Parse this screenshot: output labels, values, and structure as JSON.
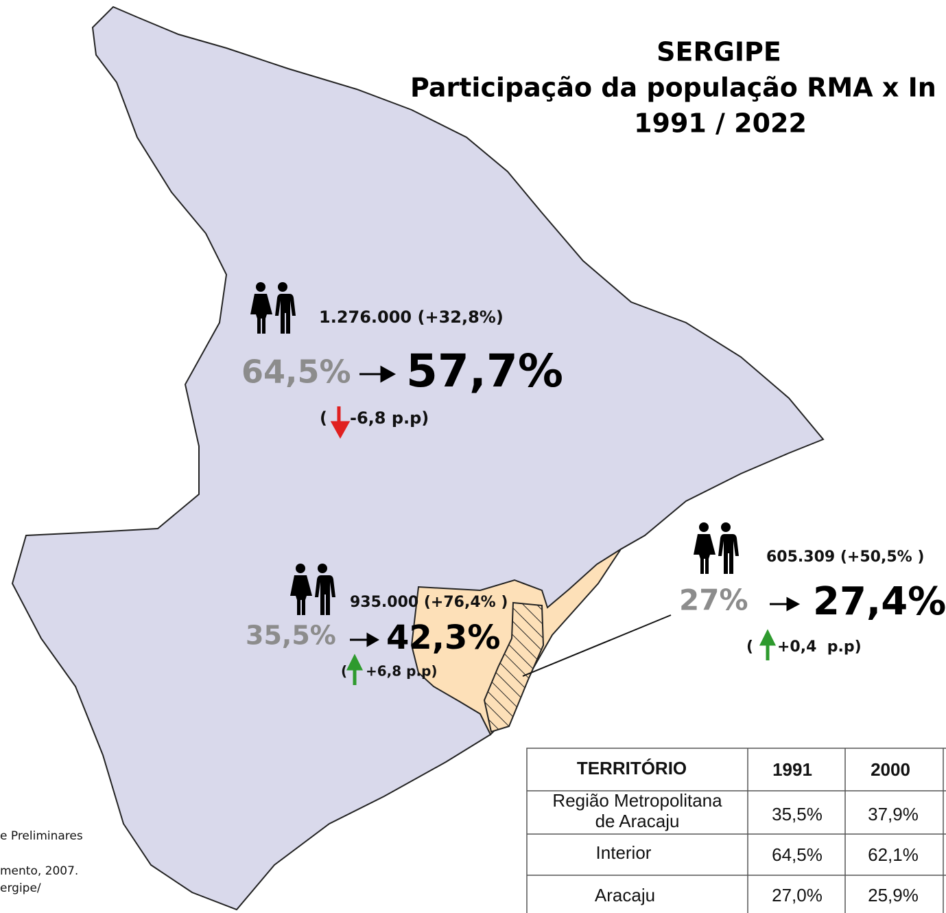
{
  "title": {
    "lines": [
      "SERGIPE",
      "Participação da população RMA x In",
      "1991 / 2022"
    ]
  },
  "interior": {
    "population": "1.276.000 (+32,8%)",
    "share_1991": "64,5%",
    "share_2022": "57,7%",
    "change_open": "(",
    "change": "-6,8 p.p)"
  },
  "rma": {
    "population": "935.000 (+76,4% )",
    "share_1991": "35,5%",
    "share_2022": "42,3%",
    "change_open": "(",
    "change": "+6,8 p.p)"
  },
  "aracaju": {
    "population": "605.309 (+50,5% )",
    "share_1991": "27%",
    "share_2022": "27,4%",
    "change_open": "(",
    "change": "+0,4  p.p)"
  },
  "source": {
    "lines": [
      "e Preliminares",
      "mento, 2007.",
      "ergipe/"
    ]
  },
  "table": {
    "header": [
      "TERRITÓRIO",
      "1991",
      "2000"
    ],
    "rows": [
      [
        [
          "Região Metropolitana",
          "de Aracaju"
        ],
        "35,5%",
        "37,9%"
      ],
      [
        [
          "Interior"
        ],
        "64,5%",
        "62,1%"
      ],
      [
        [
          "Aracaju"
        ],
        "27,0%",
        "25,9%"
      ]
    ]
  }
}
